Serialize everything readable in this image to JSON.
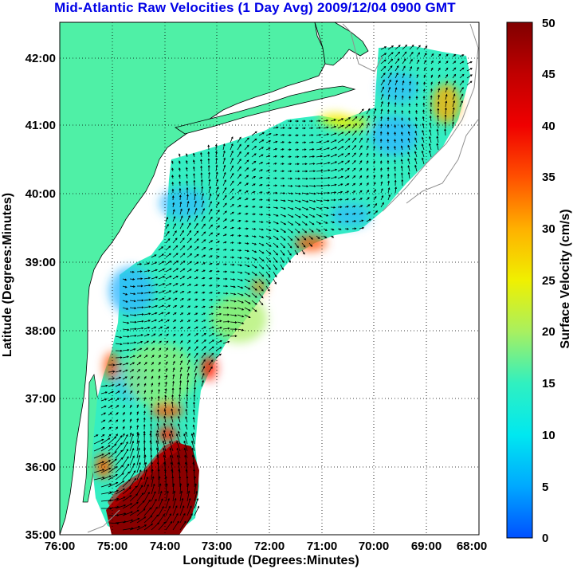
{
  "title": "Mid-Atlantic Raw Velocities (1 Day Avg) 2009/12/04 0900 GMT",
  "xaxis": {
    "label": "Longitude (Degrees:Minutes)",
    "ticks": [
      "76:00",
      "75:00",
      "74:00",
      "73:00",
      "72:00",
      "71:00",
      "70:00",
      "69:00",
      "68:00"
    ]
  },
  "yaxis": {
    "label": "Latitude (Degrees:Minutes)",
    "ticks": [
      "35:00",
      "36:00",
      "37:00",
      "38:00",
      "39:00",
      "40:00",
      "41:00",
      "42:00"
    ]
  },
  "colorbar": {
    "label": "Surface Velocity (cm/s)",
    "ticks": [
      "0",
      "5",
      "10",
      "15",
      "20",
      "25",
      "30",
      "35",
      "40",
      "45",
      "50"
    ],
    "min": 0,
    "max": 50
  },
  "colors": {
    "land": "#4ff0a6",
    "title": "#0000e6",
    "colormap": [
      "#0050ff",
      "#00a8ff",
      "#00e8f0",
      "#30f0c0",
      "#a8f060",
      "#f0f000",
      "#ffb000",
      "#ff5000",
      "#f00000",
      "#c00000",
      "#800000"
    ]
  }
}
